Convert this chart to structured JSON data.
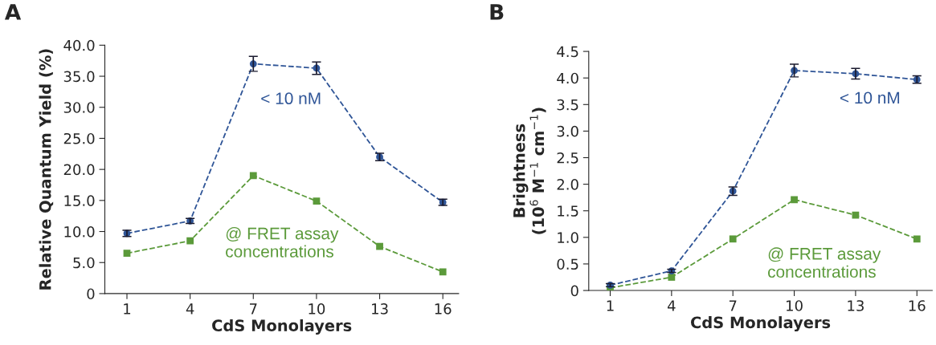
{
  "chart_data": [
    {
      "type": "line",
      "title": "A",
      "xlabel": "CdS Monolayers",
      "ylabel": "Relative Quantum Yield (%)",
      "categories": [
        "1",
        "4",
        "7",
        "10",
        "13",
        "16"
      ],
      "series": [
        {
          "name": "< 10 nM",
          "color": "#2f5597",
          "marker": "circle",
          "values": [
            9.7,
            11.7,
            37.0,
            36.3,
            22.0,
            14.7
          ],
          "errors": [
            0.5,
            0.4,
            1.2,
            1.0,
            0.6,
            0.5
          ]
        },
        {
          "name": "@ FRET assay\nconcentrations",
          "color": "#5b9a3a",
          "marker": "square",
          "values": [
            6.5,
            8.5,
            19.0,
            14.9,
            7.6,
            3.5
          ]
        }
      ],
      "ylim": [
        0,
        40
      ],
      "yticks": [
        0,
        {
          "value": 5,
          "label": "5.0"
        },
        {
          "value": 10,
          "label": "10.0"
        },
        {
          "value": 15,
          "label": "15.0"
        },
        {
          "value": 20,
          "label": "20.0"
        },
        {
          "value": 25,
          "label": "25.0"
        },
        {
          "value": 30,
          "label": "30.0"
        },
        {
          "value": 35,
          "label": "35.0"
        },
        {
          "value": 40,
          "label": "40.0"
        }
      ],
      "line_style": "dashed",
      "grid": false,
      "legend": false
    },
    {
      "type": "line",
      "title": "B",
      "xlabel": "CdS Monolayers",
      "ylabel": "Brightness\n(10$^{6}$ M$^{−1}$ cm$^{−1}$)",
      "categories": [
        "1",
        "4",
        "7",
        "10",
        "13",
        "16"
      ],
      "series": [
        {
          "name": "< 10 nM",
          "color": "#2f5597",
          "marker": "circle",
          "values": [
            0.1,
            0.37,
            1.87,
            4.14,
            4.08,
            3.97
          ],
          "errors": [
            0.03,
            0.03,
            0.08,
            0.12,
            0.1,
            0.07
          ]
        },
        {
          "name": "@ FRET assay\nconcentrations",
          "color": "#5b9a3a",
          "marker": "square",
          "values": [
            0.05,
            0.25,
            0.97,
            1.71,
            1.42,
            0.97
          ]
        }
      ],
      "ylim": [
        0,
        4.5
      ],
      "yticks": [
        0,
        0.5,
        {
          "value": 1,
          "label": "1.0"
        },
        1.5,
        {
          "value": 2,
          "label": "2.0"
        },
        2.5,
        {
          "value": 3,
          "label": "3.0"
        },
        3.5,
        {
          "value": 4,
          "label": "4.0"
        },
        4.5
      ],
      "line_style": "dashed",
      "grid": false,
      "legend": false
    }
  ]
}
